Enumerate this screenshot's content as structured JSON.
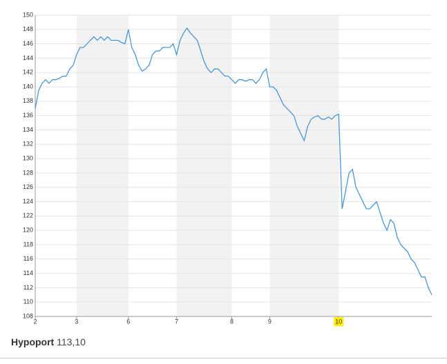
{
  "chart_data": {
    "type": "line",
    "values": [
      137,
      139.5,
      140.5,
      141,
      140.5,
      141,
      141,
      141.2,
      141.5,
      141.5,
      142.5,
      143,
      144.5,
      145.5,
      145.5,
      146,
      146.5,
      147,
      146.5,
      147,
      146.5,
      147,
      146.5,
      146.5,
      146.5,
      146.2,
      146,
      148,
      145.5,
      144.5,
      143,
      142.2,
      142.5,
      143,
      144.5,
      145,
      145,
      145.5,
      145.5,
      145.5,
      146,
      144.5,
      146.5,
      147.5,
      148.2,
      147.5,
      147,
      146.5,
      145,
      143.5,
      142.5,
      142,
      142.5,
      142.5,
      142,
      141.5,
      141.5,
      141,
      140.5,
      141,
      141,
      140.8,
      141,
      141,
      140.5,
      141,
      142,
      142.5,
      140,
      140,
      139.5,
      138.5,
      137.5,
      137,
      136.5,
      136,
      134.5,
      133.5,
      132.5,
      134.5,
      135.5,
      135.8,
      136,
      135.5,
      135.5,
      135.8,
      135.5,
      136,
      136.2,
      123,
      125.5,
      128,
      128.5,
      126,
      125,
      124,
      123,
      123,
      123.5,
      124,
      122.5,
      121,
      120,
      121.5,
      121,
      119,
      118,
      117.5,
      117,
      116,
      115.5,
      114.5,
      113.5,
      113.5,
      112,
      111
    ],
    "color": "#3a8fd9",
    "xlim": [
      0,
      115
    ],
    "xticks": [
      {
        "value": 0,
        "label": "2"
      },
      {
        "value": 12,
        "label": "3"
      },
      {
        "value": 27,
        "label": "6"
      },
      {
        "value": 41,
        "label": "7"
      },
      {
        "value": 57,
        "label": "8"
      },
      {
        "value": 68,
        "label": "9"
      },
      {
        "value": 88,
        "label": "10"
      }
    ],
    "ylim": [
      108,
      150
    ],
    "yticks": [
      108,
      110,
      112,
      114,
      116,
      118,
      120,
      122,
      124,
      126,
      128,
      130,
      132,
      134,
      136,
      138,
      140,
      142,
      144,
      146,
      148,
      150
    ],
    "grid": true
  },
  "footer": {
    "name": "Hypoport",
    "price": "113,10"
  }
}
